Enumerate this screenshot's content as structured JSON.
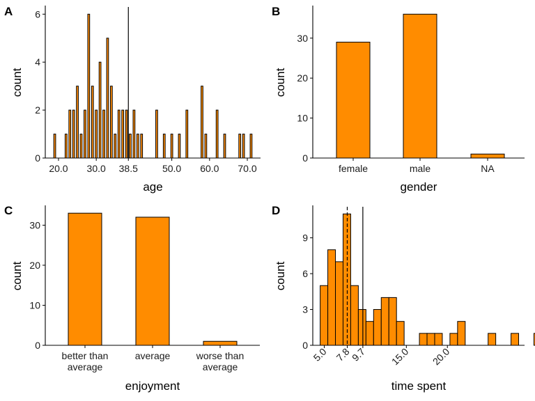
{
  "colors": {
    "bar_fill": "#FF8C00",
    "bar_stroke": "#000000",
    "axis": "#000000",
    "background": "#ffffff"
  },
  "chart_data": [
    {
      "panel": "A",
      "type": "bar",
      "xlabel": "age",
      "ylabel": "count",
      "x_tick_labels": [
        "20.0",
        "30.0",
        "38.5",
        "50.0",
        "60.0",
        "70.0"
      ],
      "y_tick_labels": [
        "0",
        "2",
        "4",
        "6"
      ],
      "xlim": [
        16.5,
        73.5
      ],
      "ylim": [
        0,
        6.3
      ],
      "grid": false,
      "vline": 38.5,
      "bar_width": 0.5,
      "x": [
        19,
        22,
        23,
        24,
        25,
        26,
        27,
        28,
        29,
        30,
        31,
        32,
        33,
        34,
        35,
        36,
        37,
        38,
        39,
        40,
        41,
        42,
        46,
        48,
        50,
        52,
        54,
        58,
        59,
        62,
        64,
        68,
        69,
        71
      ],
      "values": [
        1,
        1,
        2,
        2,
        3,
        1,
        2,
        6,
        3,
        2,
        4,
        2,
        5,
        3,
        1,
        2,
        2,
        2,
        1,
        2,
        1,
        1,
        2,
        1,
        1,
        1,
        2,
        3,
        1,
        2,
        1,
        1,
        1,
        1
      ]
    },
    {
      "panel": "B",
      "type": "bar",
      "xlabel": "gender",
      "ylabel": "count",
      "categories": [
        "female",
        "male",
        "NA"
      ],
      "values": [
        29,
        36,
        1
      ],
      "y_tick_labels": [
        "0",
        "10",
        "20",
        "30"
      ],
      "ylim": [
        0,
        37.8
      ],
      "grid": false
    },
    {
      "panel": "C",
      "type": "bar",
      "xlabel": "enjoyment",
      "ylabel": "count",
      "categories": [
        "better than\naverage",
        "average",
        "worse than\naverage"
      ],
      "values": [
        33,
        32,
        1
      ],
      "y_tick_labels": [
        "0",
        "10",
        "20",
        "30"
      ],
      "ylim": [
        0,
        34.6
      ],
      "grid": false
    },
    {
      "panel": "D",
      "type": "bar",
      "xlabel": "time spent",
      "ylabel": "count",
      "x_tick_labels": [
        "5.0",
        "7.8",
        "9.7",
        "15.0",
        "20.0"
      ],
      "y_tick_labels": [
        "0",
        "3",
        "6",
        "9"
      ],
      "xlim": [
        3.6,
        29.4
      ],
      "ylim": [
        0,
        11.6
      ],
      "grid": false,
      "median_line": 9.7,
      "mean_line_dashed": 7.8,
      "bin_width": 0.93,
      "bin_start": 4.5,
      "values": [
        5,
        8,
        7,
        11,
        5,
        3,
        2,
        3,
        4,
        4,
        2,
        0,
        0,
        1,
        1,
        1,
        0,
        1,
        2,
        0,
        0,
        0,
        1,
        0,
        0,
        1,
        0,
        0,
        1
      ]
    }
  ]
}
